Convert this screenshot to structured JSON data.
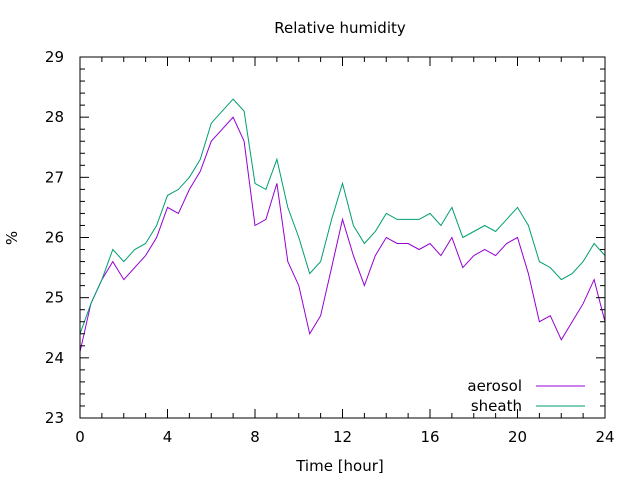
{
  "chart_data": {
    "type": "line",
    "title": "Relative humidity",
    "xlabel": "Time [hour]",
    "ylabel": "%",
    "xlim": [
      0,
      24
    ],
    "ylim": [
      23,
      29
    ],
    "xticks": [
      0,
      4,
      8,
      12,
      16,
      20,
      24
    ],
    "yticks": [
      23,
      24,
      25,
      26,
      27,
      28,
      29
    ],
    "grid": false,
    "legend_position": "bottom-right",
    "series": [
      {
        "name": "aerosol",
        "color": "#9400d3",
        "x": [
          0,
          0.5,
          1,
          1.5,
          2,
          2.5,
          3,
          3.5,
          4,
          4.5,
          5,
          5.5,
          6,
          6.5,
          7,
          7.5,
          8,
          8.5,
          9,
          9.5,
          10,
          10.5,
          11,
          11.5,
          12,
          12.5,
          13,
          13.5,
          14,
          14.5,
          15,
          15.5,
          16,
          16.5,
          17,
          17.5,
          18,
          18.5,
          19,
          19.5,
          20,
          20.5,
          21,
          21.5,
          22,
          22.5,
          23,
          23.5,
          24
        ],
        "values": [
          24.1,
          24.9,
          25.3,
          25.6,
          25.3,
          25.5,
          25.7,
          26.0,
          26.5,
          26.4,
          26.8,
          27.1,
          27.6,
          27.8,
          28.0,
          27.6,
          26.2,
          26.3,
          26.9,
          25.6,
          25.2,
          24.4,
          24.7,
          25.5,
          26.3,
          25.7,
          25.2,
          25.7,
          26.0,
          25.9,
          25.9,
          25.8,
          25.9,
          25.7,
          26.0,
          25.5,
          25.7,
          25.8,
          25.7,
          25.9,
          26.0,
          25.4,
          24.6,
          24.7,
          24.3,
          24.6,
          24.9,
          25.3,
          24.6
        ]
      },
      {
        "name": "sheath",
        "color": "#009e73",
        "x": [
          0,
          0.5,
          1,
          1.5,
          2,
          2.5,
          3,
          3.5,
          4,
          4.5,
          5,
          5.5,
          6,
          6.5,
          7,
          7.5,
          8,
          8.5,
          9,
          9.5,
          10,
          10.5,
          11,
          11.5,
          12,
          12.5,
          13,
          13.5,
          14,
          14.5,
          15,
          15.5,
          16,
          16.5,
          17,
          17.5,
          18,
          18.5,
          19,
          19.5,
          20,
          20.5,
          21,
          21.5,
          22,
          22.5,
          23,
          23.5,
          24
        ],
        "values": [
          24.4,
          24.9,
          25.3,
          25.8,
          25.6,
          25.8,
          25.9,
          26.2,
          26.7,
          26.8,
          27.0,
          27.3,
          27.9,
          28.1,
          28.3,
          28.1,
          26.9,
          26.8,
          27.3,
          26.5,
          26.0,
          25.4,
          25.6,
          26.3,
          26.9,
          26.2,
          25.9,
          26.1,
          26.4,
          26.3,
          26.3,
          26.3,
          26.4,
          26.2,
          26.5,
          26.0,
          26.1,
          26.2,
          26.1,
          26.3,
          26.5,
          26.2,
          25.6,
          25.5,
          25.3,
          25.4,
          25.6,
          25.9,
          25.7
        ]
      }
    ]
  }
}
